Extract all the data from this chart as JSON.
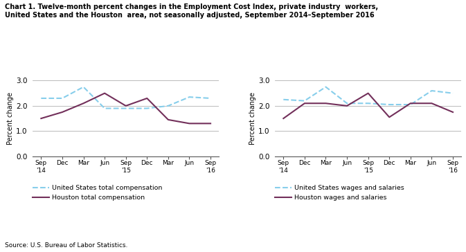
{
  "title_line1": "Chart 1. Twelve-month percent changes in the Employment Cost Index, private industry  workers,",
  "title_line2": "United States and the Houston  area, not seasonally adjusted, September 2014–September 2016",
  "source": "Source: U.S. Bureau of Labor Statistics.",
  "ylim": [
    0.0,
    3.0
  ],
  "yticks": [
    0.0,
    1.0,
    2.0,
    3.0
  ],
  "ytick_labels": [
    "0.0",
    "1.0",
    "2.0",
    "3.0"
  ],
  "ylabel": "Percent change",
  "left_us_total": [
    2.3,
    2.3,
    2.75,
    1.9,
    1.9,
    1.9,
    2.0,
    2.35,
    2.3
  ],
  "left_houston_total": [
    1.5,
    1.75,
    2.1,
    2.5,
    2.0,
    2.3,
    1.45,
    1.3,
    1.3
  ],
  "right_us_wages": [
    2.25,
    2.2,
    2.75,
    2.1,
    2.1,
    2.05,
    2.05,
    2.6,
    2.5
  ],
  "right_houston_wages": [
    1.5,
    2.1,
    2.1,
    2.0,
    2.5,
    1.55,
    2.1,
    2.1,
    1.75
  ],
  "us_color": "#87CEEB",
  "houston_color": "#722F5A",
  "linewidth": 1.5,
  "left_legend1": "United States total compensation",
  "left_legend2": "Houston total compensation",
  "right_legend1": "United States wages and salaries",
  "right_legend2": "Houston wages and salaries",
  "background_color": "#ffffff",
  "grid_color": "#b0b0b0",
  "x_tick_labels": [
    "Sep\n'14",
    "Dec",
    "Mar",
    "Jun",
    "Sep\n'15",
    "Dec",
    "Mar",
    "Jun",
    "Sep\n'16"
  ]
}
